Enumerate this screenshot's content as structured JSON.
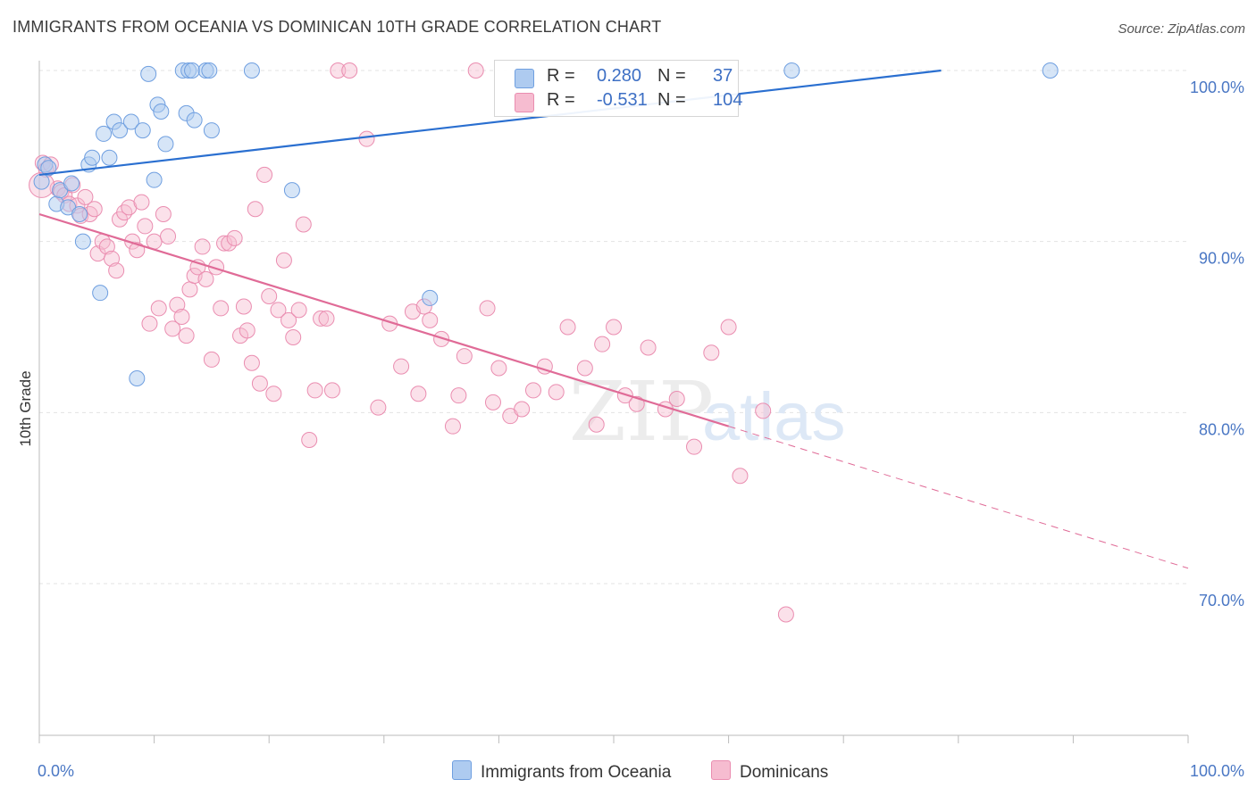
{
  "title": "IMMIGRANTS FROM OCEANIA VS DOMINICAN 10TH GRADE CORRELATION CHART",
  "source": "Source: ZipAtlas.com",
  "watermark": "ZIPatlas",
  "colors": {
    "blue_fill": "#aecbf0",
    "blue_stroke": "#6f9fe0",
    "blue_line": "#2a6fd0",
    "pink_fill": "#f6bcd0",
    "pink_stroke": "#ea8db0",
    "pink_line": "#e06b97",
    "grid": "#e3e3e3",
    "axis_text": "#4a77c4"
  },
  "legend_top": [
    {
      "r_label": "R =",
      "r_value": "0.280",
      "n_label": "N =",
      "n_value": "37",
      "color": "#aecbf0"
    },
    {
      "r_label": "R =",
      "r_value": "-0.531",
      "n_label": "N =",
      "n_value": "104",
      "color": "#f6bcd0"
    }
  ],
  "legend_bottom": [
    {
      "label": "Immigrants from Oceania",
      "color": "#aecbf0"
    },
    {
      "label": "Dominicans",
      "color": "#f6bcd0"
    }
  ],
  "chart_data": {
    "type": "scatter",
    "title": "IMMIGRANTS FROM OCEANIA VS DOMINICAN 10TH GRADE CORRELATION CHART",
    "xlabel": "",
    "ylabel": "10th Grade",
    "xlim": [
      0,
      100
    ],
    "ylim": [
      61,
      102
    ],
    "x_tick_labels": [
      "0.0%",
      "100.0%"
    ],
    "y_ticks": [
      70,
      80,
      90,
      100
    ],
    "y_tick_labels": [
      "70.0%",
      "80.0%",
      "90.0%",
      "100.0%"
    ],
    "grid": true,
    "legend_position": "top-center",
    "series": [
      {
        "name": "Immigrants from Oceania",
        "r": 0.28,
        "n": 37,
        "trend": {
          "x": [
            0,
            78.5
          ],
          "y": [
            93.9,
            100.0
          ]
        },
        "points": [
          [
            0.2,
            93.5
          ],
          [
            0.5,
            94.5
          ],
          [
            0.8,
            94.3
          ],
          [
            1.5,
            92.2
          ],
          [
            1.8,
            93.0
          ],
          [
            2.5,
            92.0
          ],
          [
            2.8,
            93.4
          ],
          [
            3.5,
            91.6
          ],
          [
            3.8,
            90.0
          ],
          [
            4.3,
            94.5
          ],
          [
            4.6,
            94.9
          ],
          [
            5.3,
            87.0
          ],
          [
            5.6,
            96.3
          ],
          [
            6.1,
            94.9
          ],
          [
            6.5,
            97.0
          ],
          [
            7.0,
            96.5
          ],
          [
            8.0,
            97.0
          ],
          [
            8.5,
            82.0
          ],
          [
            9.0,
            96.5
          ],
          [
            9.5,
            99.8
          ],
          [
            10.0,
            93.6
          ],
          [
            10.3,
            98.0
          ],
          [
            10.6,
            97.6
          ],
          [
            11.0,
            95.7
          ],
          [
            12.5,
            100.0
          ],
          [
            12.8,
            97.5
          ],
          [
            13.0,
            100.0
          ],
          [
            13.3,
            100.0
          ],
          [
            13.5,
            97.1
          ],
          [
            14.5,
            100.0
          ],
          [
            14.8,
            100.0
          ],
          [
            15.0,
            96.5
          ],
          [
            18.5,
            100.0
          ],
          [
            22.0,
            93.0
          ],
          [
            34.0,
            86.7
          ],
          [
            65.5,
            100.0
          ],
          [
            88.0,
            100.0
          ]
        ]
      },
      {
        "name": "Dominicans",
        "r": -0.531,
        "n": 104,
        "trend": {
          "x": [
            0,
            60
          ],
          "y": [
            91.6,
            79.2
          ]
        },
        "trend_dashed": {
          "x": [
            60,
            100
          ],
          "y": [
            79.2,
            70.9
          ]
        },
        "points": [
          [
            0.3,
            94.6
          ],
          [
            0.6,
            94.2
          ],
          [
            1.0,
            94.5
          ],
          [
            1.6,
            93.1
          ],
          [
            1.9,
            92.9
          ],
          [
            2.2,
            92.7
          ],
          [
            2.6,
            92.2
          ],
          [
            2.9,
            93.3
          ],
          [
            3.3,
            92.1
          ],
          [
            3.6,
            91.5
          ],
          [
            4.0,
            92.6
          ],
          [
            4.4,
            91.6
          ],
          [
            4.8,
            91.9
          ],
          [
            5.1,
            89.3
          ],
          [
            5.5,
            90.0
          ],
          [
            5.9,
            89.7
          ],
          [
            6.3,
            89.0
          ],
          [
            6.7,
            88.3
          ],
          [
            7.0,
            91.3
          ],
          [
            7.4,
            91.7
          ],
          [
            7.8,
            92.0
          ],
          [
            8.1,
            90.0
          ],
          [
            8.5,
            89.5
          ],
          [
            8.9,
            92.3
          ],
          [
            9.2,
            90.9
          ],
          [
            9.6,
            85.2
          ],
          [
            10.0,
            90.0
          ],
          [
            10.4,
            86.1
          ],
          [
            10.8,
            91.6
          ],
          [
            11.2,
            90.3
          ],
          [
            11.6,
            84.9
          ],
          [
            12.0,
            86.3
          ],
          [
            12.4,
            85.6
          ],
          [
            12.8,
            84.5
          ],
          [
            13.1,
            87.2
          ],
          [
            13.5,
            88.0
          ],
          [
            13.8,
            88.5
          ],
          [
            14.2,
            89.7
          ],
          [
            14.5,
            87.8
          ],
          [
            15.0,
            83.1
          ],
          [
            15.4,
            88.5
          ],
          [
            15.8,
            86.1
          ],
          [
            16.1,
            89.9
          ],
          [
            16.5,
            89.9
          ],
          [
            17.0,
            90.2
          ],
          [
            17.5,
            84.5
          ],
          [
            17.8,
            86.2
          ],
          [
            18.1,
            84.8
          ],
          [
            18.5,
            82.9
          ],
          [
            18.8,
            91.9
          ],
          [
            19.2,
            81.7
          ],
          [
            19.6,
            93.9
          ],
          [
            20.0,
            86.8
          ],
          [
            20.4,
            81.1
          ],
          [
            20.8,
            86.0
          ],
          [
            21.3,
            88.9
          ],
          [
            21.7,
            85.4
          ],
          [
            22.1,
            84.4
          ],
          [
            22.6,
            86.0
          ],
          [
            23.0,
            91.0
          ],
          [
            23.5,
            78.4
          ],
          [
            24.0,
            81.3
          ],
          [
            24.5,
            85.5
          ],
          [
            25.0,
            85.5
          ],
          [
            25.5,
            81.3
          ],
          [
            26.0,
            100.0
          ],
          [
            27.0,
            100.0
          ],
          [
            28.5,
            96.0
          ],
          [
            29.5,
            80.3
          ],
          [
            30.5,
            85.2
          ],
          [
            31.5,
            82.7
          ],
          [
            32.5,
            85.9
          ],
          [
            33.0,
            81.1
          ],
          [
            33.5,
            86.2
          ],
          [
            34.0,
            85.4
          ],
          [
            35.0,
            84.3
          ],
          [
            36.0,
            79.2
          ],
          [
            36.5,
            81.0
          ],
          [
            37.0,
            83.3
          ],
          [
            38.0,
            100.0
          ],
          [
            39.0,
            86.1
          ],
          [
            39.5,
            80.6
          ],
          [
            40.0,
            82.6
          ],
          [
            41.0,
            79.8
          ],
          [
            42.0,
            80.2
          ],
          [
            43.0,
            81.3
          ],
          [
            44.0,
            82.7
          ],
          [
            45.0,
            81.2
          ],
          [
            46.0,
            85.0
          ],
          [
            47.5,
            82.6
          ],
          [
            48.5,
            79.3
          ],
          [
            49.0,
            84.0
          ],
          [
            50.0,
            85.0
          ],
          [
            51.0,
            81.0
          ],
          [
            52.0,
            80.5
          ],
          [
            53.0,
            83.8
          ],
          [
            54.5,
            80.2
          ],
          [
            55.5,
            80.8
          ],
          [
            57.0,
            78.0
          ],
          [
            58.5,
            83.5
          ],
          [
            60.0,
            85.0
          ],
          [
            61.0,
            76.3
          ],
          [
            63.0,
            80.1
          ],
          [
            65.0,
            68.2
          ]
        ]
      }
    ]
  }
}
